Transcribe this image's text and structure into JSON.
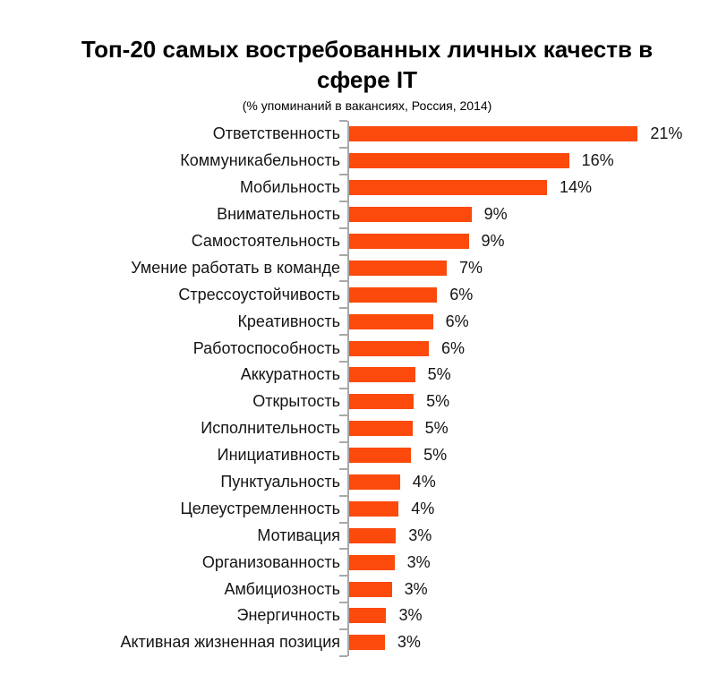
{
  "header": {
    "title_line1": "Топ-20 самых востребованных личных качеств в",
    "title_line2": "сфере IT",
    "subtitle": "(% упоминаний в вакансиях, Россия, 2014)"
  },
  "chart_data": {
    "type": "bar",
    "orientation": "horizontal",
    "title": "Топ-20 самых востребованных личных качеств в сфере IT",
    "subtitle": "(% упоминаний в вакансиях, Россия, 2014)",
    "xlabel": "",
    "ylabel": "",
    "xlim": [
      0,
      27
    ],
    "grid": false,
    "legend": false,
    "bar_color": "#FB4A0C",
    "axis_color": "#A8A8A8",
    "categories": [
      "Ответственность",
      "Коммуникабельность",
      "Мобильность",
      "Внимательность",
      "Самостоятельность",
      "Умение работать в команде",
      "Стрессоустойчивость",
      "Креативность",
      "Работоспособность",
      "Аккуратность",
      "Открытость",
      "Исполнительность",
      "Инициативность",
      "Пунктуальность",
      "Целеустремленность",
      "Мотивация",
      "Организованность",
      "Амбициозность",
      "Энергичность",
      "Активная жизненная позиция"
    ],
    "values": [
      21,
      16,
      14,
      9,
      9,
      7,
      6,
      6,
      6,
      5,
      5,
      5,
      5,
      4,
      4,
      3,
      3,
      3,
      3,
      3
    ],
    "value_labels": [
      "21%",
      "16%",
      "14%",
      "9%",
      "9%",
      "7%",
      "6%",
      "6%",
      "6%",
      "5%",
      "5%",
      "5%",
      "5%",
      "4%",
      "4%",
      "3%",
      "3%",
      "3%",
      "3%",
      "3%"
    ],
    "values_precise": [
      21.0,
      16.0,
      14.4,
      8.9,
      8.7,
      7.1,
      6.4,
      6.1,
      5.8,
      4.8,
      4.7,
      4.6,
      4.5,
      3.7,
      3.6,
      3.4,
      3.3,
      3.1,
      2.7,
      2.6
    ]
  }
}
